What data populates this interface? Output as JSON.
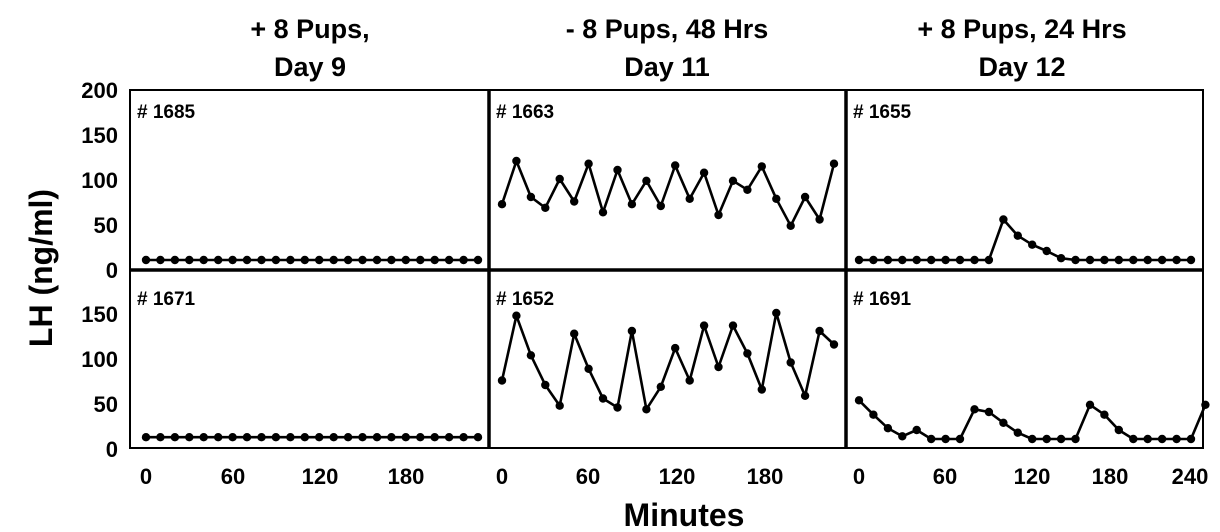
{
  "figure": {
    "y_axis_label": "LH (ng/ml)",
    "x_axis_label": "Minutes",
    "y_ticks": [
      "200",
      "150",
      "100",
      "50",
      "0"
    ],
    "y_ticks_bottom": [
      "150",
      "100",
      "50",
      "0"
    ],
    "x_ticks_cols": [
      [
        "0",
        "60",
        "120",
        "180"
      ],
      [
        "0",
        "60",
        "120",
        "180"
      ],
      [
        "0",
        "60",
        "120",
        "180",
        "240"
      ]
    ],
    "columns": [
      {
        "title_line1": "+ 8 Pups,",
        "title_line2": "Day 9"
      },
      {
        "title_line1": "- 8 Pups, 48 Hrs",
        "title_line2": "Day 11"
      },
      {
        "title_line1": "+ 8 Pups, 24 Hrs",
        "title_line2": "Day 12"
      }
    ]
  },
  "chart_data": {
    "type": "line",
    "xlabel": "Minutes",
    "ylabel": "LH (ng/ml)",
    "xlim": [
      0,
      240
    ],
    "ylim": [
      0,
      200
    ],
    "grid": false,
    "panels": [
      {
        "id": "# 1685",
        "row": 0,
        "col": 0,
        "x": [
          0,
          10,
          20,
          30,
          40,
          50,
          60,
          70,
          80,
          90,
          100,
          110,
          120,
          130,
          140,
          150,
          160,
          170,
          180,
          190,
          200,
          210,
          220,
          230
        ],
        "y": [
          10,
          10,
          10,
          10,
          10,
          10,
          10,
          10,
          10,
          10,
          10,
          10,
          10,
          10,
          10,
          10,
          10,
          10,
          10,
          10,
          10,
          10,
          10,
          10
        ]
      },
      {
        "id": "# 1663",
        "row": 0,
        "col": 1,
        "x": [
          0,
          10,
          20,
          30,
          40,
          50,
          60,
          70,
          80,
          90,
          100,
          110,
          120,
          130,
          140,
          150,
          160,
          170,
          180,
          190,
          200,
          210,
          220,
          230
        ],
        "y": [
          72,
          120,
          80,
          68,
          100,
          75,
          117,
          63,
          110,
          72,
          98,
          70,
          115,
          78,
          107,
          60,
          98,
          88,
          114,
          78,
          48,
          80,
          55,
          117
        ]
      },
      {
        "id": "# 1655",
        "row": 0,
        "col": 2,
        "x": [
          0,
          10,
          20,
          30,
          40,
          50,
          60,
          70,
          80,
          90,
          100,
          110,
          120,
          130,
          140,
          150,
          160,
          170,
          180,
          190,
          200,
          210,
          220,
          230
        ],
        "y": [
          10,
          10,
          10,
          10,
          10,
          10,
          10,
          10,
          10,
          10,
          55,
          37,
          27,
          20,
          12,
          10,
          10,
          10,
          10,
          10,
          10,
          10,
          10,
          10
        ]
      },
      {
        "id": "# 1671",
        "row": 1,
        "col": 0,
        "x": [
          0,
          10,
          20,
          30,
          40,
          50,
          60,
          70,
          80,
          90,
          100,
          110,
          120,
          130,
          140,
          150,
          160,
          170,
          180,
          190,
          200,
          210,
          220,
          230
        ],
        "y": [
          12,
          12,
          12,
          12,
          12,
          12,
          12,
          12,
          12,
          12,
          12,
          12,
          12,
          12,
          12,
          12,
          12,
          12,
          12,
          12,
          12,
          12,
          12,
          12
        ]
      },
      {
        "id": "# 1652",
        "row": 1,
        "col": 1,
        "x": [
          0,
          10,
          20,
          30,
          40,
          50,
          60,
          70,
          80,
          90,
          100,
          110,
          120,
          130,
          140,
          150,
          160,
          170,
          180,
          190,
          200,
          210,
          220,
          230
        ],
        "y": [
          75,
          147,
          103,
          70,
          47,
          127,
          88,
          55,
          45,
          130,
          43,
          68,
          111,
          75,
          136,
          90,
          136,
          105,
          65,
          150,
          95,
          58,
          130,
          115
        ]
      },
      {
        "id": "# 1691",
        "row": 1,
        "col": 2,
        "x": [
          0,
          10,
          20,
          30,
          40,
          50,
          60,
          70,
          80,
          90,
          100,
          110,
          120,
          130,
          140,
          150,
          160,
          170,
          180,
          190,
          200,
          210,
          220,
          230,
          240
        ],
        "y": [
          53,
          37,
          22,
          13,
          20,
          10,
          10,
          10,
          43,
          40,
          28,
          17,
          10,
          10,
          10,
          10,
          48,
          37,
          20,
          10,
          10,
          10,
          10,
          10,
          48
        ]
      }
    ]
  }
}
